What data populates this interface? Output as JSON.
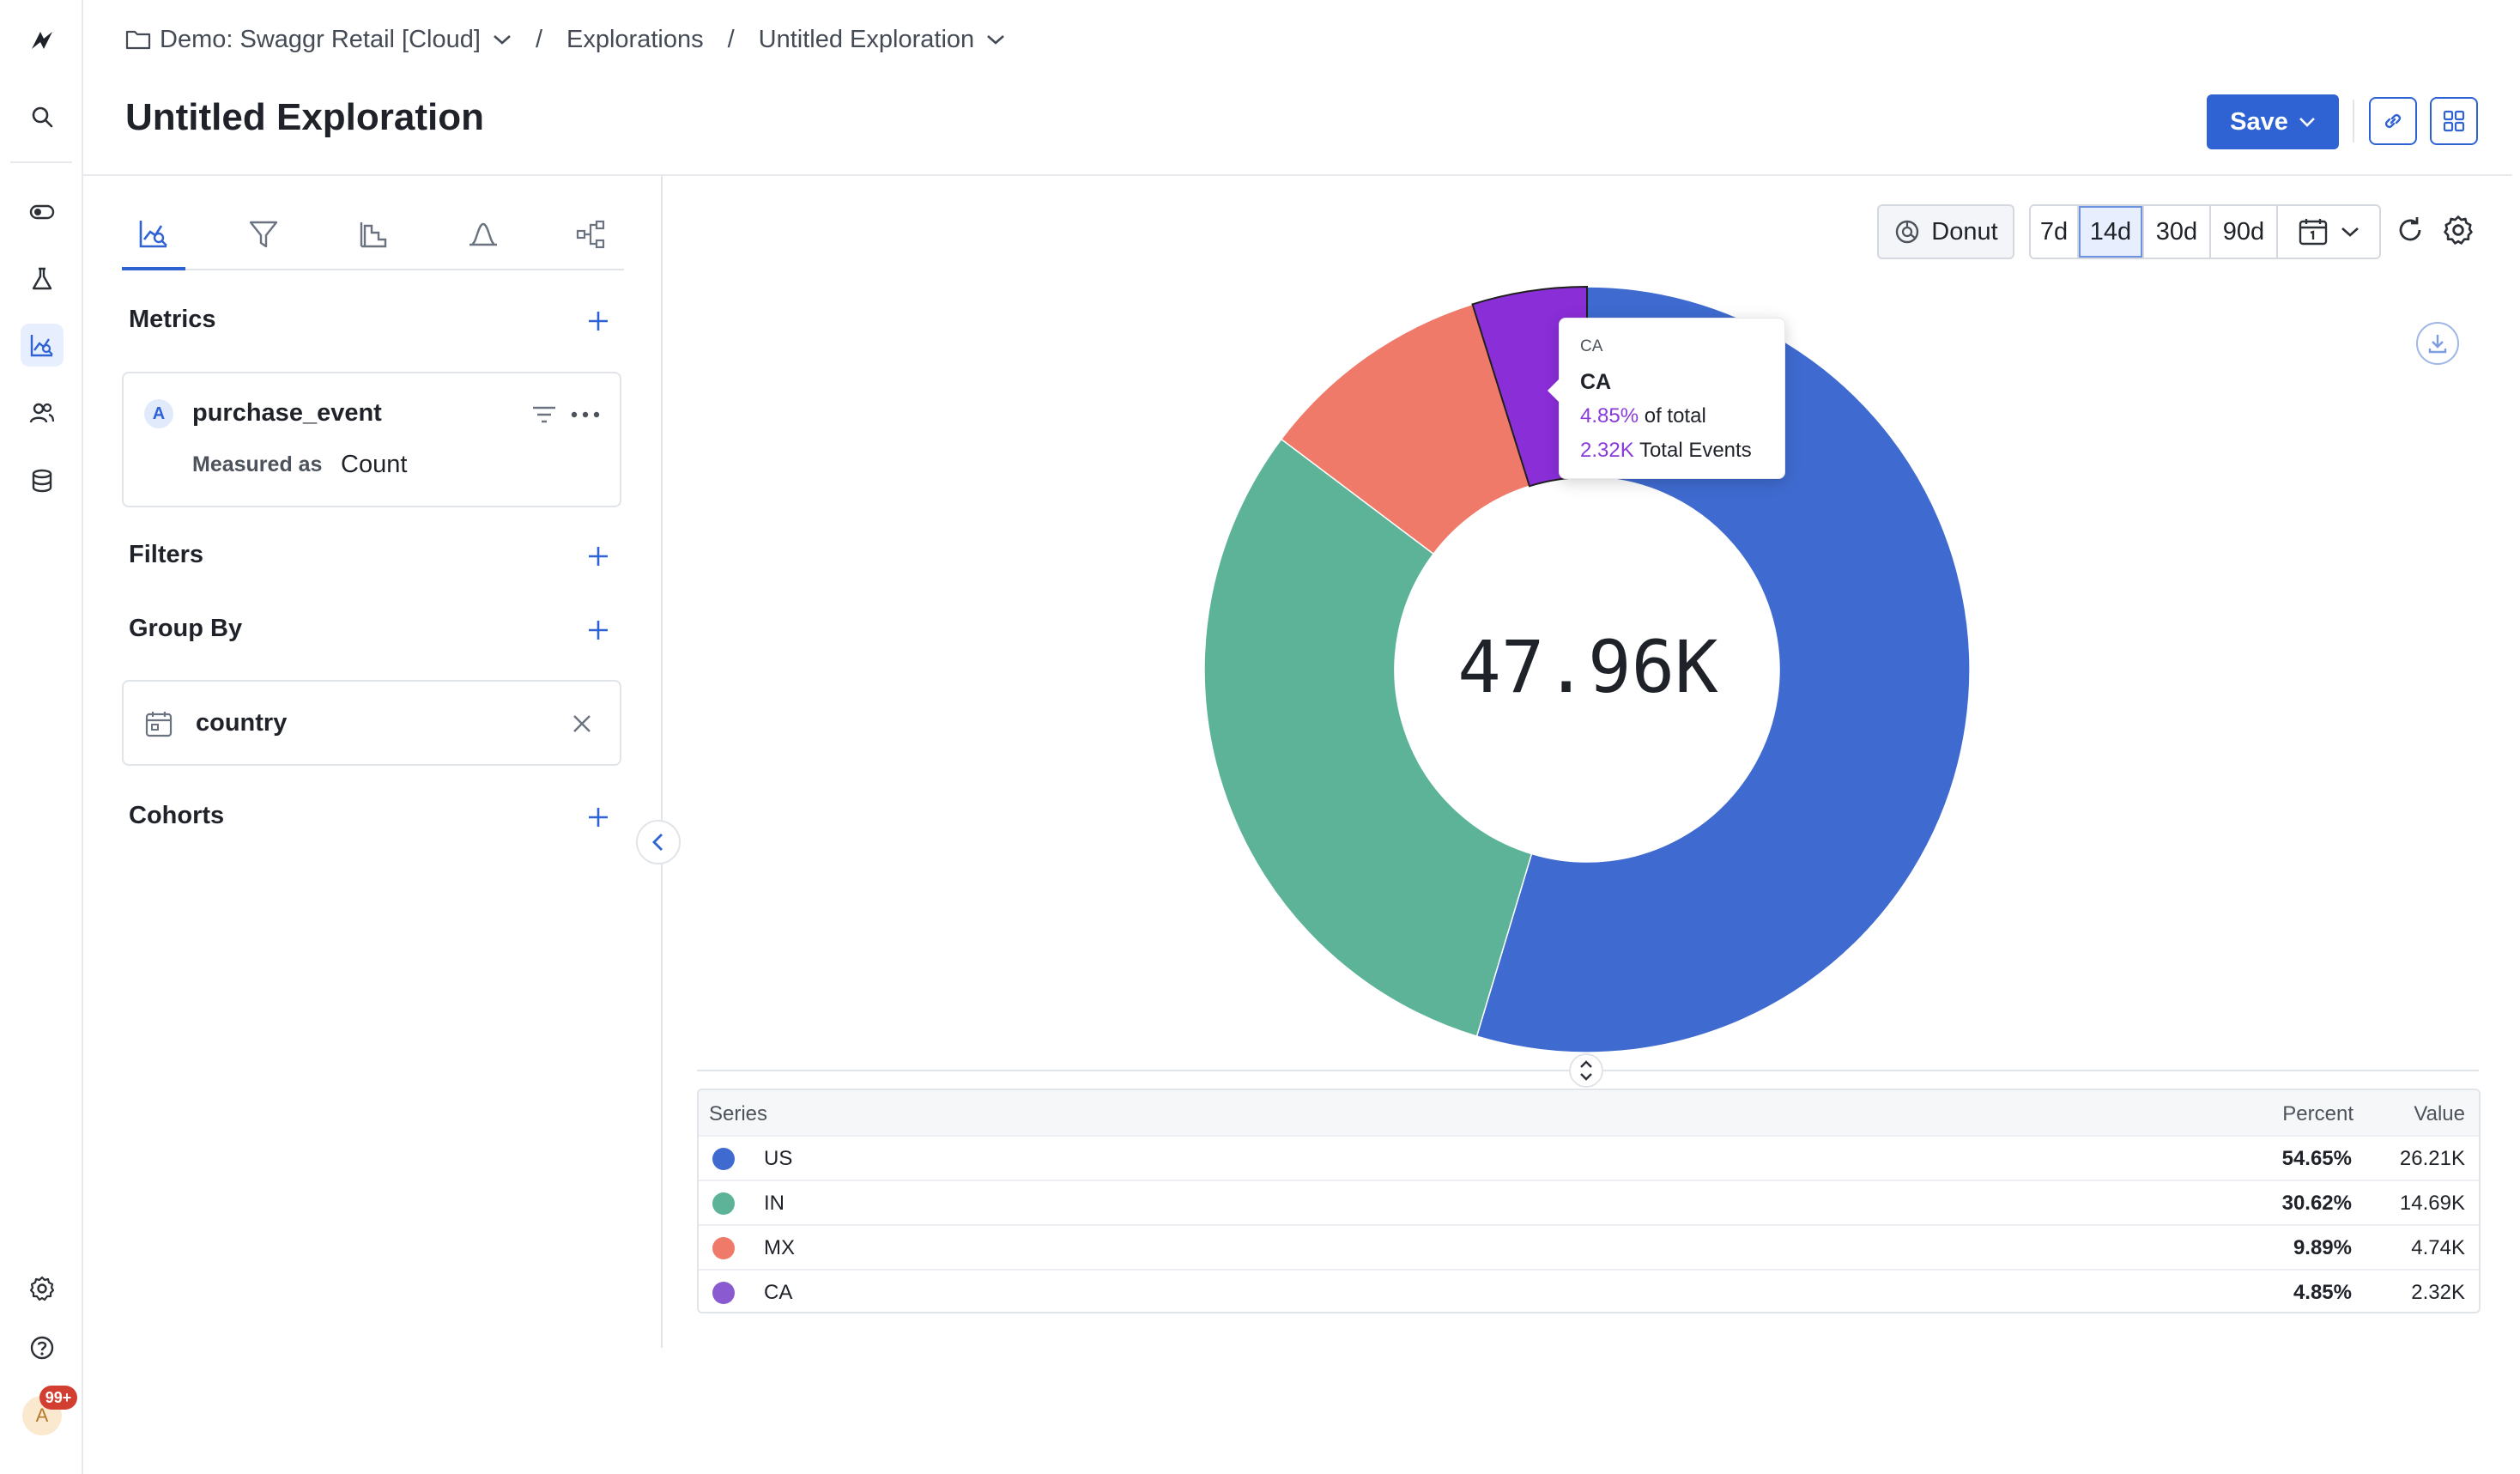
{
  "breadcrumb": {
    "project": "Demo: Swaggr Retail [Cloud]",
    "section": "Explorations",
    "current": "Untitled Exploration"
  },
  "page_title": "Untitled Exploration",
  "header_actions": {
    "save_label": "Save"
  },
  "rail": {
    "badge": "99+",
    "avatar_initial": "A"
  },
  "panel": {
    "metrics_label": "Metrics",
    "metric": {
      "letter": "A",
      "name": "purchase_event",
      "measured_label": "Measured as",
      "measured_value": "Count"
    },
    "filters_label": "Filters",
    "group_by_label": "Group By",
    "group_by_value": "country",
    "cohorts_label": "Cohorts"
  },
  "toolbar": {
    "chart_type": "Donut",
    "ranges": [
      "7d",
      "14d",
      "30d",
      "90d"
    ],
    "selected_range": "14d"
  },
  "tooltip": {
    "small": "CA",
    "name": "CA",
    "percent": "4.85%",
    "percent_suffix": "of total",
    "value": "2.32K",
    "value_suffix": "Total Events"
  },
  "chart_data": {
    "type": "pie",
    "center_label": "47.96K",
    "categories": [
      "US",
      "IN",
      "MX",
      "CA"
    ],
    "values": [
      26.21,
      14.69,
      4.74,
      2.32
    ],
    "percents": [
      54.65,
      30.62,
      9.89,
      4.85
    ],
    "colors": [
      "#3f6bd0",
      "#5cb398",
      "#ef7a6a",
      "#8a2ed8"
    ],
    "highlighted": "CA"
  },
  "legend_table": {
    "headers": {
      "series": "Series",
      "percent": "Percent",
      "value": "Value"
    },
    "rows": [
      {
        "series": "US",
        "percent": "54.65%",
        "value": "26.21K",
        "color": "#3f6bd0"
      },
      {
        "series": "IN",
        "percent": "30.62%",
        "value": "14.69K",
        "color": "#5cb398"
      },
      {
        "series": "MX",
        "percent": "9.89%",
        "value": "4.74K",
        "color": "#ef7a6a"
      },
      {
        "series": "CA",
        "percent": "4.85%",
        "value": "2.32K",
        "color": "#8a5ad0"
      }
    ]
  }
}
